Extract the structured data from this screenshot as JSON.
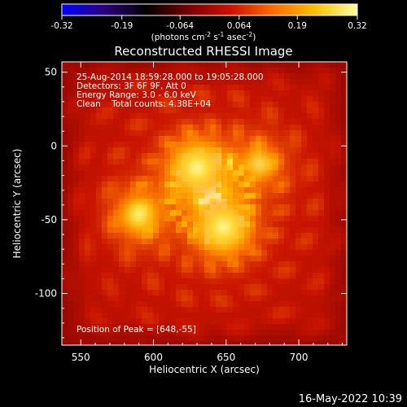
{
  "colorbar": {
    "tick_labels": [
      "-0.32",
      "-0.19",
      "-0.064",
      "0.064",
      "0.19",
      "0.32"
    ],
    "tick_values": [
      -0.32,
      -0.19,
      -0.064,
      0.064,
      0.19,
      0.32
    ],
    "range": [
      -0.32,
      0.32
    ],
    "units_prefix": "(photons cm",
    "units_exp1": "-2",
    "units_mid1": " s",
    "units_exp2": "-1",
    "units_mid2": " asec",
    "units_exp3": "-2",
    "units_suffix": ")",
    "colors": [
      "#0000ff",
      "#2a0080",
      "#000000",
      "#7a0000",
      "#d01000",
      "#ff6a00",
      "#ffc000",
      "#ffffa0"
    ]
  },
  "plot": {
    "title": "Reconstructed RHESSI Image",
    "xlabel": "Heliocentric X (arcsec)",
    "ylabel": "Heliocentric Y (arcsec)",
    "x_ticks": [
      "550",
      "600",
      "650",
      "700"
    ],
    "x_tick_values": [
      550,
      600,
      650,
      700
    ],
    "y_ticks": [
      "50",
      "0",
      "-50",
      "-100"
    ],
    "y_tick_values": [
      50,
      0,
      -50,
      -100
    ],
    "x_range": [
      537,
      733
    ],
    "y_range": [
      -135,
      57
    ]
  },
  "overlay": {
    "line1": "25-Aug-2014 18:59:28.000 to 19:05:28.000",
    "line2": "Detectors: 3F 6F 9F, Att 0",
    "line3": "Energy Range: 3.0 - 6.0 keV",
    "line4": "Clean    Total counts: 4.38E+04",
    "peak": "Position of Peak = [648,-55]"
  },
  "sources": [
    {
      "x": 630,
      "y": -15,
      "intensity": 1.0
    },
    {
      "x": 648,
      "y": -55,
      "intensity": 1.0
    },
    {
      "x": 590,
      "y": -47,
      "intensity": 0.62
    },
    {
      "x": 673,
      "y": -12,
      "intensity": 0.45
    }
  ],
  "footer": {
    "timestamp": "16-May-2022 10:39"
  }
}
